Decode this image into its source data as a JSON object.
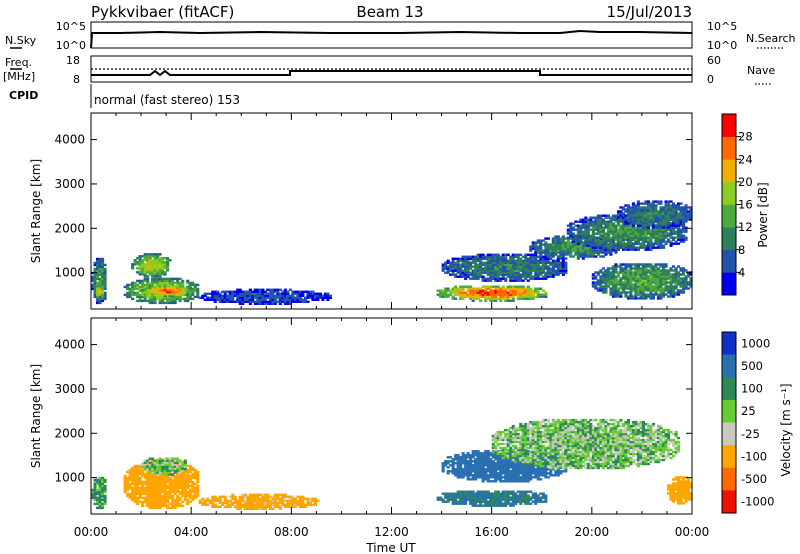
{
  "header": {
    "radar": "Pykkvibaer (fitACF)",
    "beam": "Beam 13",
    "date": "15/Jul/2013"
  },
  "params": {
    "nsky_label": "N.Sky",
    "nsky_ticks": [
      "10^5",
      "10^0"
    ],
    "nsearch_label": "N.Search",
    "nsearch_ticks": [
      "10^5",
      "10^0"
    ],
    "freq_label_1": "Freq.",
    "freq_label_2": "[MHz]",
    "freq_ticks": [
      "18",
      "8"
    ],
    "nave_label": "Nave",
    "nave_ticks": [
      "60",
      "0"
    ],
    "cpid_label": "CPID",
    "cpid_text": "normal (fast stereo) 153"
  },
  "colorbars": {
    "power": {
      "label": "Power [dB]",
      "ticks": [
        "28",
        "24",
        "20",
        "16",
        "12",
        "8",
        "4"
      ]
    },
    "velocity": {
      "label": "Velocity [m s⁻¹]",
      "ticks": [
        "1000",
        "500",
        "100",
        "25",
        "-25",
        "-100",
        "-500",
        "-1000"
      ]
    }
  },
  "xaxis": {
    "label": "Time UT"
  },
  "colors": {
    "power_scale": [
      "#0000ee",
      "#2255aa",
      "#2f7f5a",
      "#4caa3c",
      "#8ccc22",
      "#f0b000",
      "#ff6a00",
      "#ff0000"
    ],
    "velocity_scale": [
      "#1030c8",
      "#2a6fb0",
      "#2e8a55",
      "#66cc33",
      "#c8c8c0",
      "#ffa500",
      "#ff6a00",
      "#ee1100"
    ]
  },
  "chart_data": [
    {
      "type": "heatmap",
      "title": "Power",
      "xlabel": "",
      "ylabel": "Slant Range [km]",
      "xlim": [
        "00:00",
        "24:00"
      ],
      "ylim": [
        180,
        4600
      ],
      "x_ticks": [
        "00:00",
        "04:00",
        "08:00",
        "12:00",
        "16:00",
        "20:00",
        "00:00"
      ],
      "y_ticks": [
        1000,
        2000,
        3000,
        4000
      ],
      "colorbar_range_db": [
        0,
        32
      ],
      "regions": [
        {
          "t": [
            0.0,
            0.6
          ],
          "r": [
            300,
            1300
          ],
          "dB": 12
        },
        {
          "t": [
            0.1,
            0.5
          ],
          "r": [
            400,
            700
          ],
          "dB": 22
        },
        {
          "t": [
            1.3,
            4.3
          ],
          "r": [
            300,
            850
          ],
          "dB": 20
        },
        {
          "t": [
            1.6,
            3.2
          ],
          "r": [
            900,
            1400
          ],
          "dB": 20
        },
        {
          "t": [
            2.0,
            4.0
          ],
          "r": [
            450,
            700
          ],
          "dB": 27
        },
        {
          "t": [
            4.3,
            9.5
          ],
          "r": [
            280,
            600
          ],
          "dB": 6
        },
        {
          "t": [
            13.8,
            18.2
          ],
          "r": [
            350,
            700
          ],
          "dB": 28
        },
        {
          "t": [
            14.0,
            19.0
          ],
          "r": [
            800,
            1400
          ],
          "dB": 10
        },
        {
          "t": [
            17.5,
            21.0
          ],
          "r": [
            1300,
            1800
          ],
          "dB": 12
        },
        {
          "t": [
            19.0,
            23.8
          ],
          "r": [
            1500,
            2300
          ],
          "dB": 12
        },
        {
          "t": [
            20.0,
            24.0
          ],
          "r": [
            400,
            1200
          ],
          "dB": 14
        },
        {
          "t": [
            21.0,
            24.0
          ],
          "r": [
            2000,
            2600
          ],
          "dB": 10
        }
      ]
    },
    {
      "type": "heatmap",
      "title": "Velocity",
      "xlabel": "Time UT",
      "ylabel": "Slant Range [km]",
      "xlim": [
        "00:00",
        "24:00"
      ],
      "ylim": [
        180,
        4600
      ],
      "x_ticks": [
        "00:00",
        "04:00",
        "08:00",
        "12:00",
        "16:00",
        "20:00",
        "00:00"
      ],
      "y_ticks": [
        1000,
        2000,
        3000,
        4000
      ],
      "colorbar_range_ms": [
        -1000,
        1000
      ],
      "regions": [
        {
          "t": [
            0.0,
            0.6
          ],
          "r": [
            300,
            1000
          ],
          "v": 50
        },
        {
          "t": [
            1.3,
            4.3
          ],
          "r": [
            300,
            1400
          ],
          "v": -200
        },
        {
          "t": [
            2.0,
            3.8
          ],
          "r": [
            1050,
            1450
          ],
          "v": 0
        },
        {
          "t": [
            4.3,
            9.0
          ],
          "r": [
            280,
            600
          ],
          "v": -150
        },
        {
          "t": [
            13.8,
            18.2
          ],
          "r": [
            350,
            700
          ],
          "v": 120
        },
        {
          "t": [
            14.0,
            19.0
          ],
          "r": [
            900,
            1600
          ],
          "v": 200
        },
        {
          "t": [
            16.0,
            23.5
          ],
          "r": [
            1200,
            2300
          ],
          "v": 0
        },
        {
          "t": [
            23.0,
            24.0
          ],
          "r": [
            400,
            1000
          ],
          "v": -300
        }
      ]
    }
  ]
}
